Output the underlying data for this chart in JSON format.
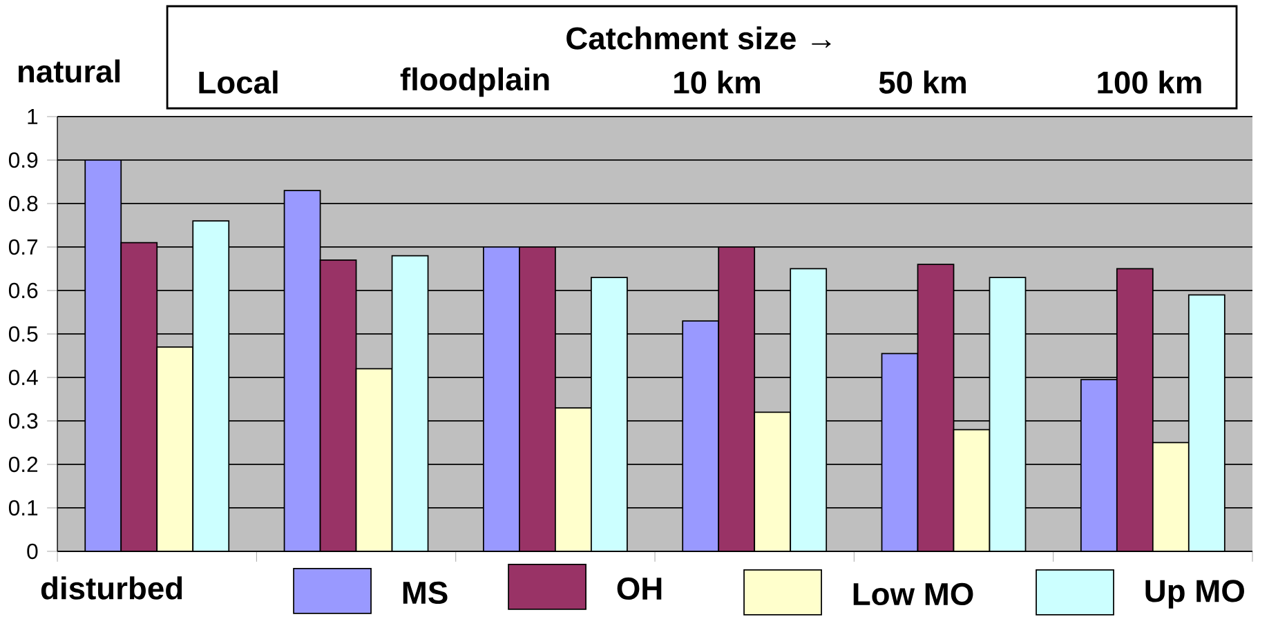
{
  "chart_data": {
    "type": "bar",
    "categories": [
      null,
      null,
      null,
      null,
      null,
      null
    ],
    "series": [
      {
        "name": "MS",
        "color": "#9999ff",
        "values": [
          0.9,
          0.83,
          0.7,
          0.53,
          0.455,
          0.395
        ]
      },
      {
        "name": "OH",
        "color": "#993366",
        "values": [
          0.71,
          0.67,
          0.7,
          0.7,
          0.66,
          0.65
        ]
      },
      {
        "name": "Low MO",
        "color": "#ffffcc",
        "values": [
          0.47,
          0.42,
          0.33,
          0.32,
          0.28,
          0.25
        ]
      },
      {
        "name": "Up MO",
        "color": "#ccffff",
        "values": [
          0.76,
          0.68,
          0.63,
          0.65,
          0.63,
          0.59
        ]
      }
    ],
    "ylim": [
      0,
      1
    ],
    "yticks": [
      0,
      0.1,
      0.2,
      0.3,
      0.4,
      0.5,
      0.6,
      0.7,
      0.8,
      0.9,
      1
    ],
    "grid": "y",
    "legend": "bottom",
    "annotations": [
      "Catchment size →",
      "Local",
      "floodplain",
      "10 km",
      "50 km",
      "100 km",
      "natural",
      "disturbed"
    ]
  }
}
